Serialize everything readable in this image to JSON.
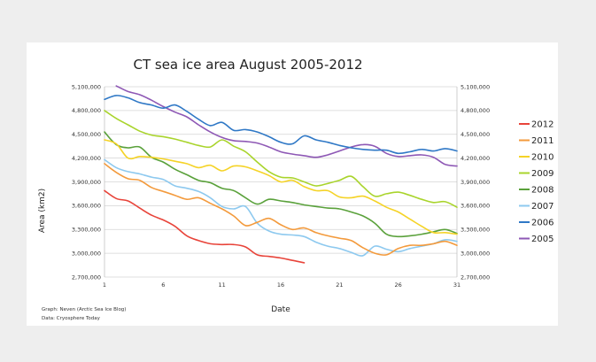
{
  "chart_data": {
    "type": "line",
    "title": "CT sea ice area August 2005-2012",
    "xlabel": "Date",
    "ylabel": "Area (km2)",
    "x_ticks": [
      1,
      6,
      11,
      16,
      21,
      26,
      31
    ],
    "xlim": [
      1,
      31
    ],
    "y_ticks": [
      2700000,
      3000000,
      3300000,
      3600000,
      3900000,
      4200000,
      4500000,
      4800000,
      5100000
    ],
    "y_tick_labels": [
      "2,700,000",
      "3,000,000",
      "3,300,000",
      "3,600,000",
      "3,900,000",
      "4,200,000",
      "4,500,000",
      "4,800,000",
      "5,100,000"
    ],
    "ylim": [
      2700000,
      5100000
    ],
    "secondary_y_axis": true,
    "grid": "horizontal",
    "legend_position": "right",
    "series": [
      {
        "name": "2012",
        "color": "#e8443a",
        "x": [
          1,
          2,
          3,
          4,
          5,
          6,
          7,
          8,
          9,
          10,
          11,
          12,
          13,
          14,
          15,
          16,
          17,
          18
        ],
        "values": [
          3790000,
          3690000,
          3660000,
          3570000,
          3480000,
          3420000,
          3340000,
          3220000,
          3160000,
          3120000,
          3110000,
          3110000,
          3080000,
          2980000,
          2960000,
          2940000,
          2910000,
          2880000
        ]
      },
      {
        "name": "2011",
        "color": "#f39a3c",
        "x": [
          1,
          2,
          3,
          4,
          5,
          6,
          7,
          8,
          9,
          10,
          11,
          12,
          13,
          14,
          15,
          16,
          17,
          18,
          19,
          20,
          21,
          22,
          23,
          24,
          25,
          26,
          27,
          28,
          29,
          30,
          31
        ],
        "values": [
          4130000,
          4020000,
          3940000,
          3920000,
          3830000,
          3780000,
          3730000,
          3680000,
          3700000,
          3630000,
          3560000,
          3470000,
          3350000,
          3390000,
          3440000,
          3360000,
          3300000,
          3320000,
          3260000,
          3220000,
          3190000,
          3160000,
          3070000,
          3000000,
          2980000,
          3060000,
          3100000,
          3100000,
          3120000,
          3150000,
          3100000
        ]
      },
      {
        "name": "2010",
        "color": "#f5d327",
        "x": [
          1,
          2,
          3,
          4,
          5,
          6,
          7,
          8,
          9,
          10,
          11,
          12,
          13,
          14,
          15,
          16,
          17,
          18,
          19,
          20,
          21,
          22,
          23,
          24,
          25,
          26,
          27,
          28,
          29,
          30,
          31
        ],
        "values": [
          4430000,
          4380000,
          4200000,
          4220000,
          4210000,
          4190000,
          4160000,
          4130000,
          4080000,
          4110000,
          4040000,
          4100000,
          4090000,
          4040000,
          3980000,
          3900000,
          3920000,
          3840000,
          3790000,
          3790000,
          3710000,
          3700000,
          3720000,
          3660000,
          3580000,
          3520000,
          3430000,
          3340000,
          3260000,
          3260000,
          3240000
        ]
      },
      {
        "name": "2009",
        "color": "#a9d42c",
        "x": [
          1,
          2,
          3,
          4,
          5,
          6,
          7,
          8,
          9,
          10,
          11,
          12,
          13,
          14,
          15,
          16,
          17,
          18,
          19,
          20,
          21,
          22,
          23,
          24,
          25,
          26,
          27,
          28,
          29,
          30,
          31
        ],
        "values": [
          4800000,
          4700000,
          4620000,
          4540000,
          4490000,
          4470000,
          4440000,
          4400000,
          4360000,
          4340000,
          4430000,
          4350000,
          4280000,
          4150000,
          4030000,
          3960000,
          3950000,
          3900000,
          3850000,
          3880000,
          3920000,
          3970000,
          3840000,
          3720000,
          3750000,
          3770000,
          3730000,
          3680000,
          3640000,
          3650000,
          3580000
        ]
      },
      {
        "name": "2008",
        "color": "#5aa13b",
        "x": [
          1,
          2,
          3,
          4,
          5,
          6,
          7,
          8,
          9,
          10,
          11,
          12,
          13,
          14,
          15,
          16,
          17,
          18,
          19,
          20,
          21,
          22,
          23,
          24,
          25,
          26,
          27,
          28,
          29,
          30,
          31
        ],
        "values": [
          4530000,
          4370000,
          4330000,
          4340000,
          4210000,
          4150000,
          4060000,
          3990000,
          3920000,
          3890000,
          3820000,
          3790000,
          3700000,
          3620000,
          3680000,
          3660000,
          3640000,
          3610000,
          3590000,
          3570000,
          3560000,
          3520000,
          3470000,
          3380000,
          3240000,
          3210000,
          3220000,
          3240000,
          3270000,
          3300000,
          3250000
        ]
      },
      {
        "name": "2007",
        "color": "#8dc9ef",
        "x": [
          1,
          2,
          3,
          4,
          5,
          6,
          7,
          8,
          9,
          10,
          11,
          12,
          13,
          14,
          15,
          16,
          17,
          18,
          19,
          20,
          21,
          22,
          23,
          24,
          25,
          26,
          27,
          28,
          29,
          30,
          31
        ],
        "values": [
          4180000,
          4080000,
          4030000,
          4000000,
          3960000,
          3930000,
          3850000,
          3820000,
          3780000,
          3700000,
          3590000,
          3560000,
          3590000,
          3380000,
          3280000,
          3240000,
          3230000,
          3210000,
          3140000,
          3090000,
          3060000,
          3010000,
          2970000,
          3090000,
          3050000,
          3020000,
          3060000,
          3090000,
          3120000,
          3170000,
          3150000
        ]
      },
      {
        "name": "2006",
        "color": "#2f78c6",
        "x": [
          1,
          2,
          3,
          4,
          5,
          6,
          7,
          8,
          9,
          10,
          11,
          12,
          13,
          14,
          15,
          16,
          17,
          18,
          19,
          20,
          21,
          22,
          23,
          24,
          25,
          26,
          27,
          28,
          29,
          30,
          31
        ],
        "values": [
          4940000,
          4990000,
          4960000,
          4900000,
          4870000,
          4830000,
          4870000,
          4790000,
          4690000,
          4610000,
          4650000,
          4550000,
          4560000,
          4530000,
          4470000,
          4400000,
          4380000,
          4480000,
          4430000,
          4400000,
          4360000,
          4330000,
          4310000,
          4300000,
          4300000,
          4260000,
          4280000,
          4310000,
          4290000,
          4320000,
          4290000
        ]
      },
      {
        "name": "2005",
        "color": "#8e58b5",
        "x": [
          2,
          3,
          4,
          5,
          6,
          7,
          8,
          9,
          10,
          11,
          12,
          13,
          14,
          15,
          16,
          17,
          18,
          19,
          20,
          21,
          22,
          23,
          24,
          25,
          26,
          27,
          28,
          29,
          30,
          31
        ],
        "values": [
          5110000,
          5040000,
          5000000,
          4930000,
          4850000,
          4780000,
          4720000,
          4620000,
          4530000,
          4460000,
          4420000,
          4410000,
          4390000,
          4340000,
          4280000,
          4250000,
          4230000,
          4210000,
          4240000,
          4290000,
          4340000,
          4370000,
          4350000,
          4260000,
          4220000,
          4230000,
          4240000,
          4210000,
          4120000,
          4100000
        ]
      }
    ],
    "credits": [
      "Graph: Neven (Arctic Sea Ice Blog)",
      "Data: Cryosphere Today"
    ]
  }
}
